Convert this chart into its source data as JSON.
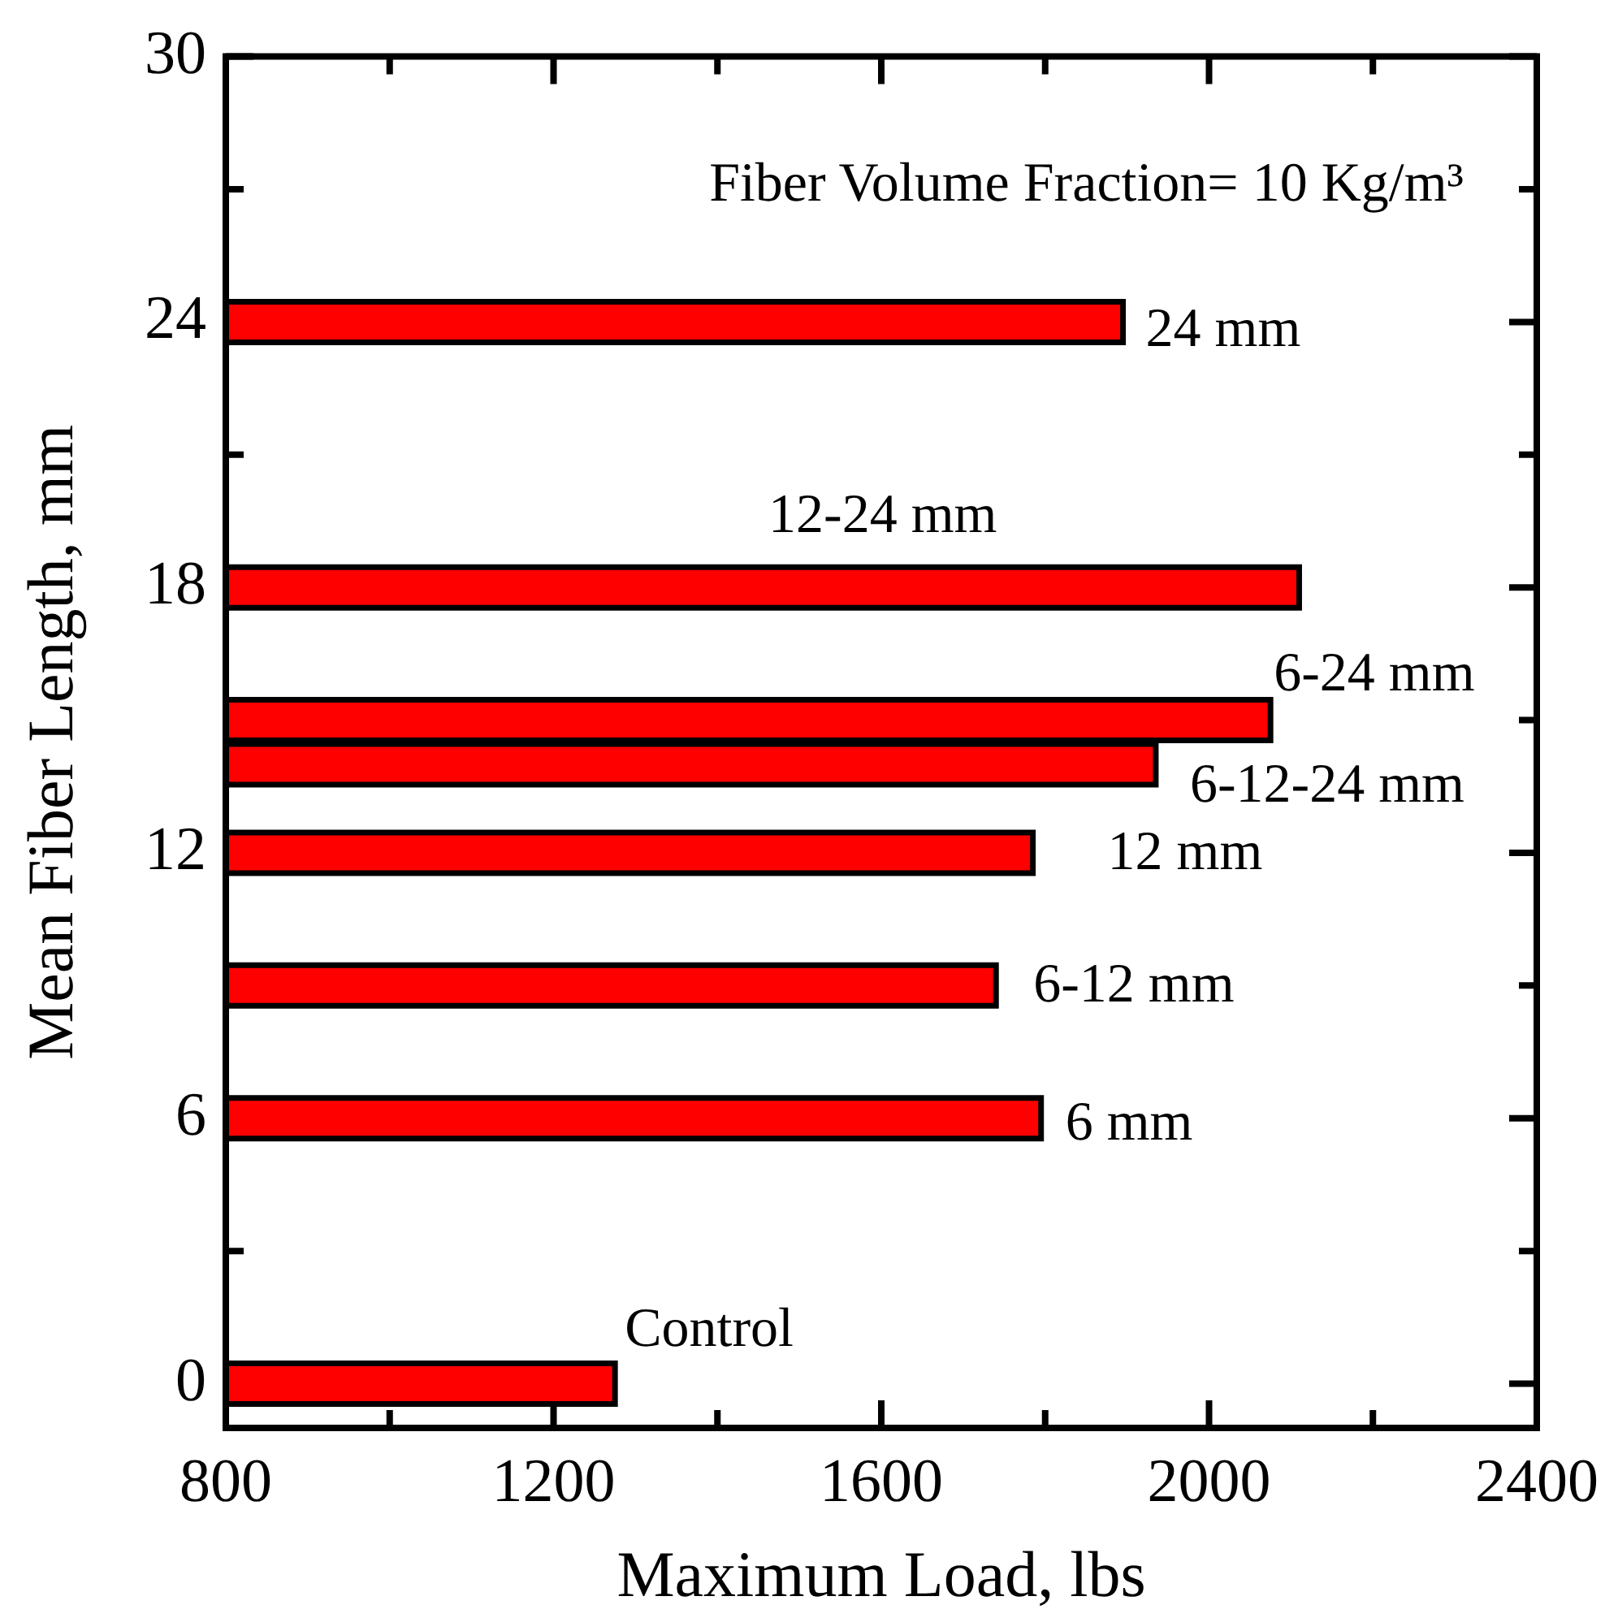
{
  "chart_data": {
    "type": "bar",
    "orientation": "horizontal",
    "xlabel": "Maximum Load, lbs",
    "ylabel": "Mean Fiber Length, mm",
    "x": [
      0,
      6,
      9,
      12,
      14,
      15,
      18,
      24
    ],
    "values": [
      1275,
      1795,
      1740,
      1785,
      1935,
      2075,
      2110,
      1895
    ],
    "color": "#ff0000",
    "xlim": [
      800,
      2400
    ],
    "xticks": [
      800,
      {
        "value": 1000,
        "label": null
      },
      1200,
      {
        "value": 1400,
        "label": null
      },
      1600,
      {
        "value": 1800,
        "label": null
      },
      2000,
      {
        "value": 2200,
        "label": null
      },
      2400
    ],
    "ylim": [
      -1,
      30
    ],
    "yticks": [
      0,
      {
        "value": 3,
        "label": null
      },
      6,
      {
        "value": 9,
        "label": null
      },
      12,
      {
        "value": 15,
        "label": null
      },
      18,
      {
        "value": 21,
        "label": null
      },
      24,
      {
        "value": 27,
        "label": null
      },
      30
    ],
    "grid": false,
    "legend": false,
    "annotations": [
      "Fiber Volume Fraction= 10 Kg/m³",
      {
        "text": "24 mm",
        "x": 1895,
        "y": 24
      },
      "12-24 mm",
      {
        "text": "6-24 mm",
        "x": 2075,
        "y": 15
      },
      {
        "text": "6-12-24 mm",
        "x": 1935,
        "y": 14
      },
      {
        "text": "12 mm",
        "x": 1785,
        "y": 12
      },
      {
        "text": "6-12 mm",
        "x": 1740,
        "y": 9
      },
      {
        "text": "6 mm",
        "x": 1795,
        "y": 6
      },
      {
        "text": "Control",
        "x": 1275,
        "y": 0
      }
    ]
  }
}
